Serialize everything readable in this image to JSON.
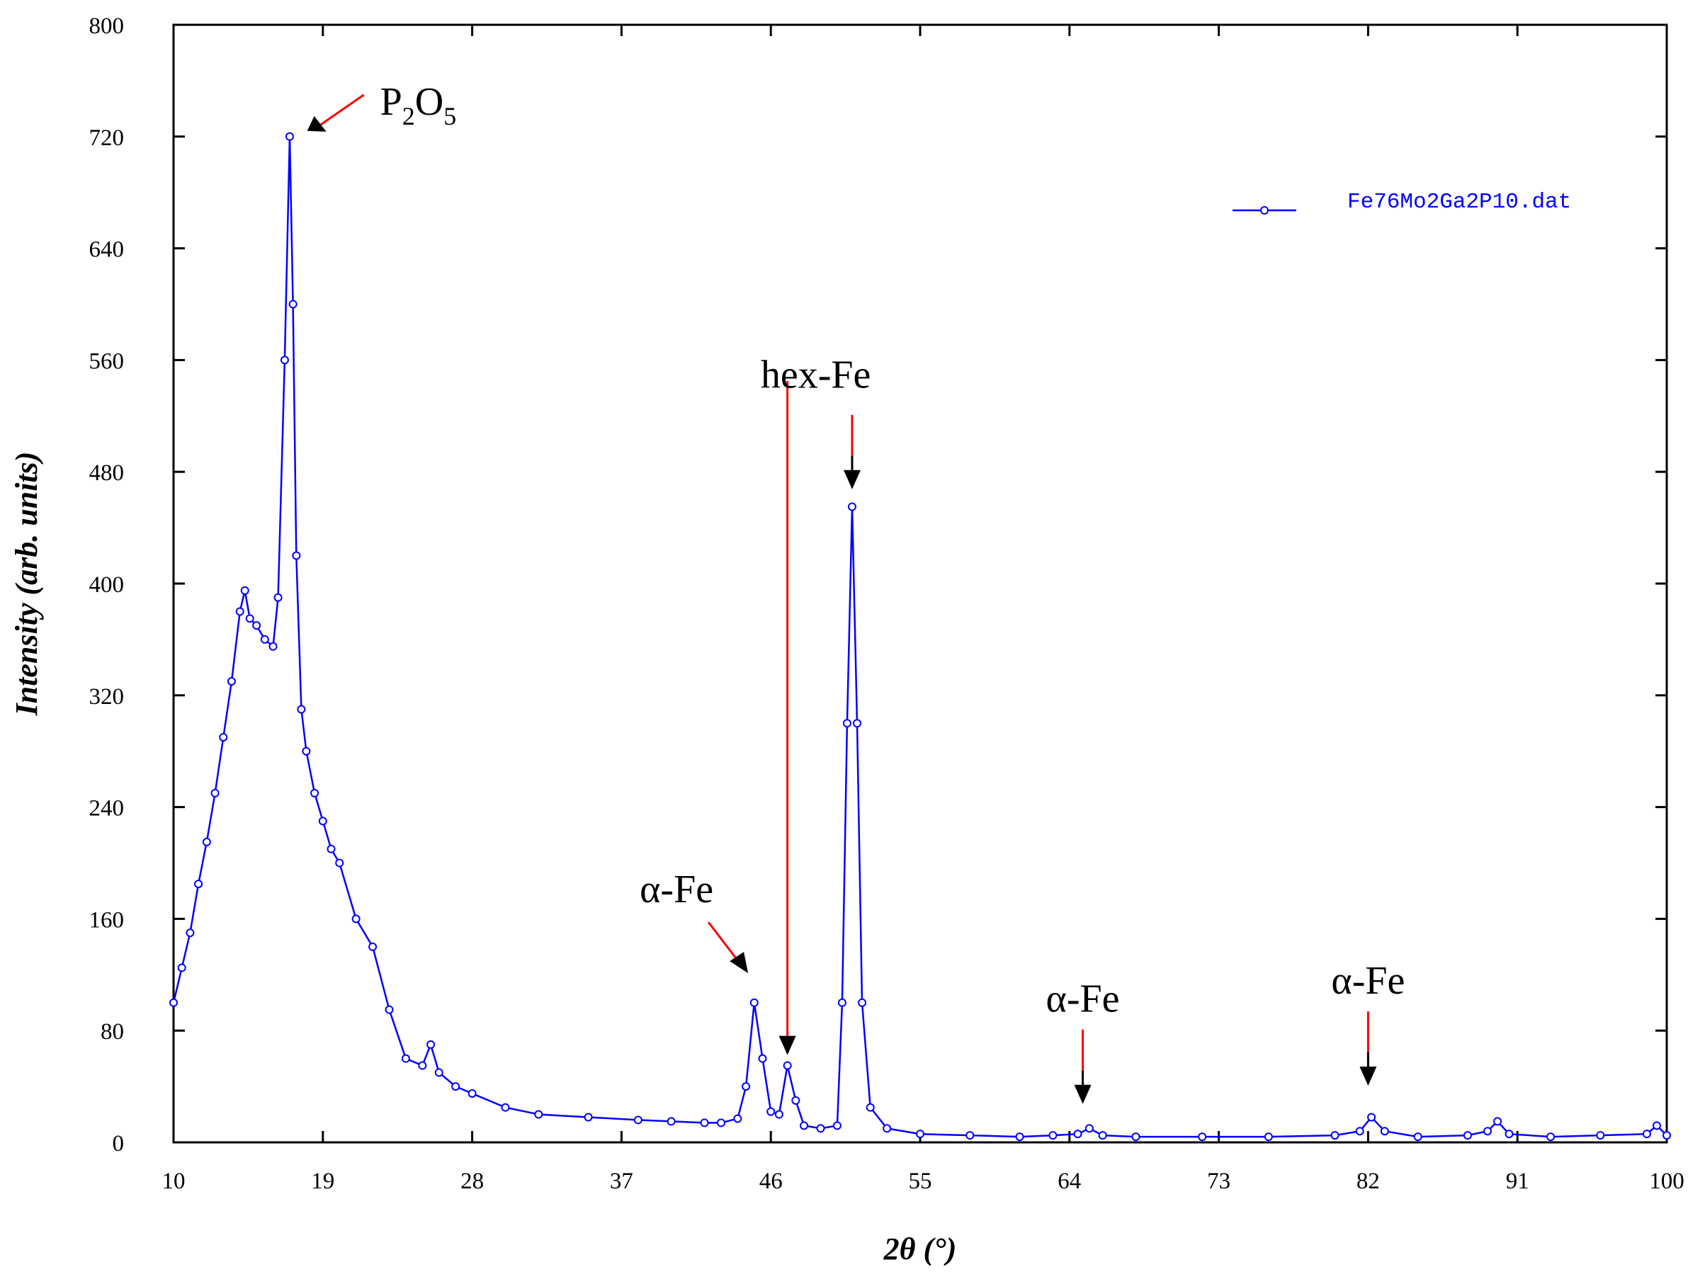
{
  "chart_data": {
    "type": "line",
    "xlabel": "2θ (°)",
    "ylabel": "Intensity (arb. units)",
    "xlim": [
      10,
      100
    ],
    "ylim": [
      0,
      800
    ],
    "xticks": [
      10,
      19,
      28,
      37,
      46,
      55,
      64,
      73,
      82,
      91,
      100
    ],
    "yticks": [
      0,
      80,
      160,
      240,
      320,
      400,
      480,
      560,
      640,
      720,
      800
    ],
    "grid": false,
    "legend_position": "top-right",
    "colors": {
      "series": "#0000ff",
      "arrow_red": "#ff0000",
      "arrow_black": "#000000",
      "axes": "#000000"
    },
    "series": [
      {
        "name": "Fe76Mo2Ga2P10.dat",
        "marker": "open-circle",
        "x": [
          10,
          10.5,
          11,
          11.5,
          12,
          12.5,
          13,
          13.5,
          14,
          14.3,
          14.6,
          15,
          15.5,
          16,
          16.3,
          16.7,
          17.0,
          17.2,
          17.4,
          17.7,
          18.0,
          18.5,
          19,
          19.5,
          20,
          21,
          22,
          23,
          24,
          25,
          25.5,
          26,
          27,
          28,
          30,
          32,
          35,
          38,
          40,
          42,
          43,
          44,
          44.5,
          45,
          45.5,
          46,
          46.5,
          47,
          47.5,
          48,
          49,
          50,
          50.3,
          50.6,
          50.9,
          51.2,
          51.5,
          52,
          53,
          55,
          58,
          61,
          63,
          64.5,
          65.2,
          66,
          68,
          72,
          76,
          80,
          81.5,
          82.2,
          83,
          85,
          88,
          89.2,
          89.8,
          90.5,
          93,
          96,
          98.8,
          99.4,
          100
        ],
        "y": [
          100,
          125,
          150,
          185,
          215,
          250,
          290,
          330,
          380,
          395,
          375,
          370,
          360,
          355,
          390,
          560,
          720,
          600,
          420,
          310,
          280,
          250,
          230,
          210,
          200,
          160,
          140,
          95,
          60,
          55,
          70,
          50,
          40,
          35,
          25,
          20,
          18,
          16,
          15,
          14,
          14,
          17,
          40,
          100,
          60,
          22,
          20,
          55,
          30,
          12,
          10,
          12,
          100,
          300,
          455,
          300,
          100,
          25,
          10,
          6,
          5,
          4,
          5,
          6,
          10,
          5,
          4,
          4,
          4,
          5,
          8,
          18,
          8,
          4,
          5,
          8,
          15,
          6,
          4,
          5,
          6,
          12,
          5
        ]
      }
    ],
    "annotations": [
      {
        "label": "P",
        "sub1": "2",
        "mid": "O",
        "sub2": "5",
        "x": 17.2,
        "y": 722,
        "arrow": "red"
      },
      {
        "label": "hex-Fe",
        "x": 47.0,
        "y": 60,
        "arrow": "red-line"
      },
      {
        "label": "",
        "x": 50.9,
        "y": 465,
        "arrow": "red-black"
      },
      {
        "label": "α-Fe",
        "x": 44.8,
        "y": 112,
        "arrow": "red-black"
      },
      {
        "label": "α-Fe",
        "x": 64.8,
        "y": 25,
        "arrow": "red-black"
      },
      {
        "label": "α-Fe",
        "x": 82.0,
        "y": 38,
        "arrow": "red-black"
      }
    ]
  }
}
